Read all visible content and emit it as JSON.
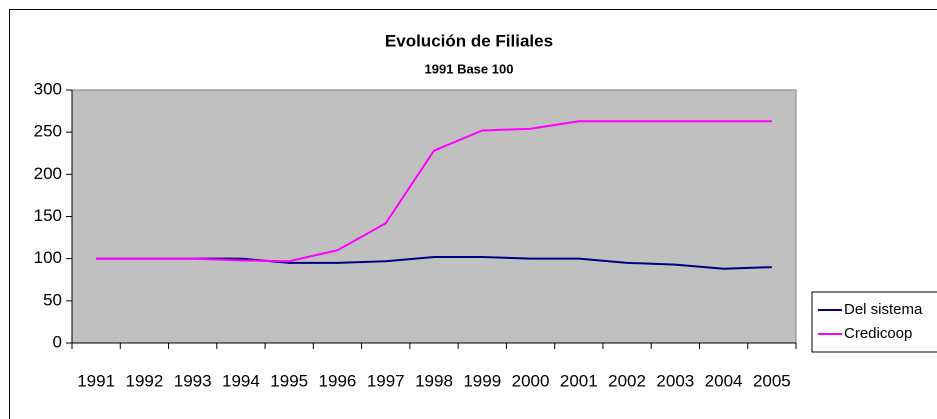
{
  "chart_data": {
    "type": "line",
    "title": "Evolución de Filiales",
    "subtitle": "1991 Base 100",
    "categories": [
      "1991",
      "1992",
      "1993",
      "1994",
      "1995",
      "1996",
      "1997",
      "1998",
      "1999",
      "2000",
      "2001",
      "2002",
      "2003",
      "2004",
      "2005"
    ],
    "series": [
      {
        "name": "Del sistema",
        "color": "#000080",
        "values": [
          100,
          100,
          100,
          100,
          95,
          95,
          97,
          102,
          102,
          100,
          100,
          95,
          93,
          88,
          90
        ]
      },
      {
        "name": "Credicoop",
        "color": "#ff00ff",
        "values": [
          100,
          100,
          100,
          98,
          97,
          110,
          142,
          228,
          252,
          254,
          263,
          263,
          263,
          263,
          263
        ]
      }
    ],
    "ylim": [
      0,
      300
    ],
    "yticks": [
      0,
      50,
      100,
      150,
      200,
      250,
      300
    ],
    "plot_background": "#c0c0c0",
    "legend": "right"
  }
}
